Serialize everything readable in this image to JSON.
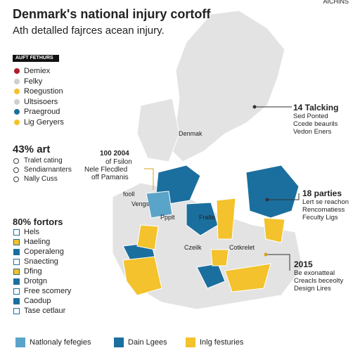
{
  "header": {
    "badge": "AICHINS",
    "title": "Denmark's national injury cortoff",
    "subtitle": "Ath detalled fajrces acean injury."
  },
  "legend": {
    "title": "AUFT FETHURS",
    "items": [
      "Demiex",
      "Felky",
      "Roegustion",
      "Ultsisoers",
      "Praegroud",
      "Lig Geryers"
    ]
  },
  "stat1": {
    "heading": "43% art",
    "items": [
      "Tralet cating",
      "Sendiarnanters",
      "Nally Cuss"
    ]
  },
  "stat2": {
    "heading": "80% fortors",
    "items": [
      "Hels",
      "Haeling",
      "Coperaleng",
      "Snaecting",
      "Dfing",
      "Drotgn",
      "Free scomery",
      "Caodup",
      "Tase cetlaur"
    ]
  },
  "map": {
    "labels": [
      "Denmak",
      "fooll",
      "Vengs",
      "Ppplt",
      "Fralte",
      "Czeilk",
      "Cotkrelet"
    ],
    "note": {
      "title": "100 2004",
      "lines": [
        "of Fsilon",
        "Nele Flecdled",
        "off Pamanis"
      ]
    }
  },
  "callouts": [
    {
      "title": "14 Talcking",
      "lines": [
        "Sed Ponted",
        "Ccede beaurils",
        "Vedon Eners"
      ]
    },
    {
      "title": "18 parties",
      "lines": [
        "Lert se reachon",
        "Rencomatiess",
        "Feculty Ligs"
      ]
    },
    {
      "title": "2015",
      "lines": [
        "Be exonatteal",
        "Creacls beceolty",
        "Design Lires"
      ]
    }
  ],
  "footer": [
    "Natlonaly fefegies",
    "Dain Lgees",
    "Inlg festuries"
  ]
}
